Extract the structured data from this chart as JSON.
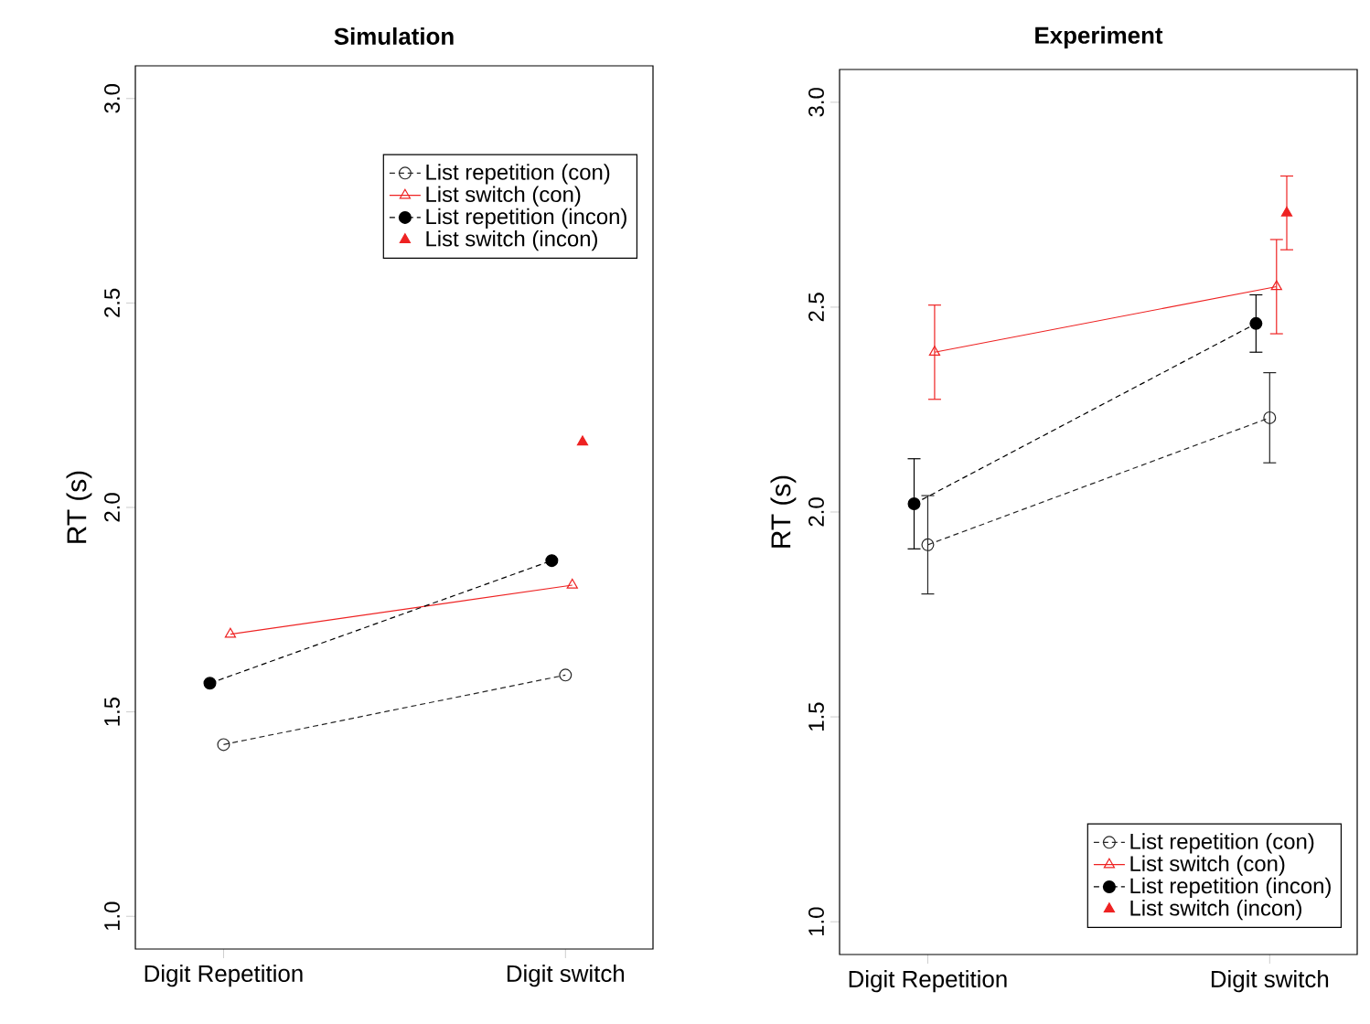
{
  "chart_data": [
    {
      "type": "line",
      "title": "Simulation",
      "ylabel": "RT (s)",
      "categories": [
        "Digit Repetition",
        "Digit switch"
      ],
      "ylim": [
        0.92,
        3.08
      ],
      "yticks": [
        {
          "value": 1.0,
          "label": "1.0"
        },
        {
          "value": 1.5,
          "label": "1.5"
        },
        {
          "value": 2.0,
          "label": "2.0"
        },
        {
          "value": 2.5,
          "label": "2.5"
        },
        {
          "value": 3.0,
          "label": "3.0"
        }
      ],
      "legend": "top right",
      "grid": false,
      "series": [
        {
          "name": "List repetition (con)",
          "color": "#262626",
          "marker": "circle",
          "line_style": "dashed",
          "values": [
            1.42,
            1.59
          ]
        },
        {
          "name": "List switch (con)",
          "color": "#ee2222",
          "marker": "triangle",
          "line_style": "solid",
          "values": [
            1.69,
            1.81
          ]
        },
        {
          "name": "List repetition (incon)",
          "color": "#000000",
          "marker": "circle",
          "line_style": "dashed",
          "values": [
            1.57,
            1.87
          ]
        },
        {
          "name": "List switch (incon)",
          "type": "scatter",
          "color": "#ee2222",
          "marker": "triangle",
          "values": [
            null,
            2.16
          ]
        }
      ]
    },
    {
      "type": "line",
      "title": "Experiment",
      "ylabel": "RT (s)",
      "categories": [
        "Digit Repetition",
        "Digit switch"
      ],
      "ylim": [
        0.92,
        3.08
      ],
      "yticks": [
        {
          "value": 1.0,
          "label": "1.0"
        },
        {
          "value": 1.5,
          "label": "1.5"
        },
        {
          "value": 2.0,
          "label": "2.0"
        },
        {
          "value": 2.5,
          "label": "2.5"
        },
        {
          "value": 3.0,
          "label": "3.0"
        }
      ],
      "legend": "bottom right",
      "grid": false,
      "series": [
        {
          "name": "List repetition (con)",
          "color": "#262626",
          "marker": "circle",
          "line_style": "dashed",
          "values": [
            1.92,
            2.23
          ],
          "errors": [
            0.12,
            0.11
          ]
        },
        {
          "name": "List switch (con)",
          "color": "#ee2222",
          "marker": "triangle",
          "line_style": "solid",
          "values": [
            2.39,
            2.55
          ],
          "errors": [
            0.115,
            0.115
          ]
        },
        {
          "name": "List repetition (incon)",
          "color": "#000000",
          "marker": "circle",
          "line_style": "dashed",
          "values": [
            2.02,
            2.46
          ],
          "errors": [
            0.11,
            0.07
          ]
        },
        {
          "name": "List switch (incon)",
          "type": "scatter",
          "color": "#ee2222",
          "marker": "triangle",
          "values": [
            null,
            2.73
          ],
          "errors": [
            null,
            0.09
          ]
        }
      ]
    }
  ]
}
